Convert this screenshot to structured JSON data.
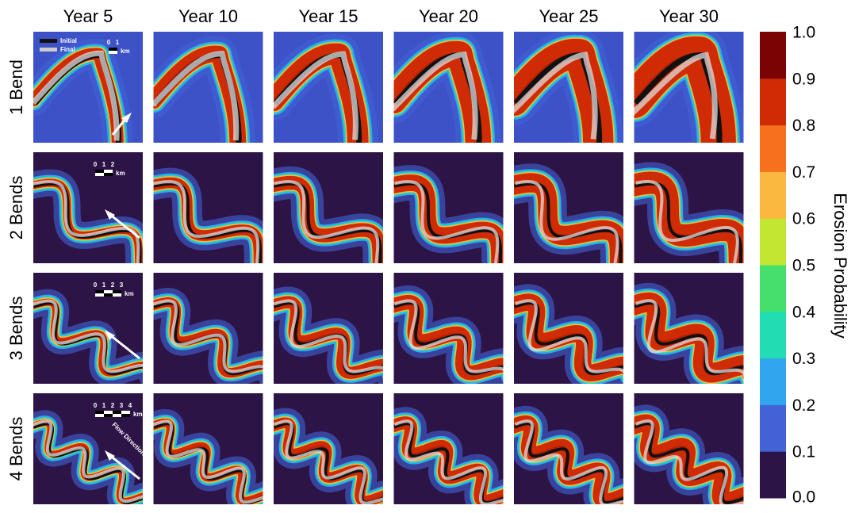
{
  "column_headers": [
    "Year 5",
    "Year 10",
    "Year 15",
    "Year 20",
    "Year 25",
    "Year 30"
  ],
  "row_labels": [
    "1 Bend",
    "2 Bends",
    "3 Bends",
    "4 Bends"
  ],
  "legend": {
    "initial": "Initial",
    "final": "Final"
  },
  "scale_bars": [
    {
      "ticks": [
        "0",
        "1"
      ],
      "unit": "km"
    },
    {
      "ticks": [
        "0",
        "1",
        "2"
      ],
      "unit": "km"
    },
    {
      "ticks": [
        "0",
        "1",
        "2",
        "3"
      ],
      "unit": "km"
    },
    {
      "ticks": [
        "0",
        "1",
        "2",
        "3",
        "4"
      ],
      "unit": "km"
    }
  ],
  "flow_label": "Flow Direction",
  "colorbar": {
    "label": "Erosion Probability",
    "ticks": [
      "0.0",
      "0.1",
      "0.2",
      "0.3",
      "0.4",
      "0.5",
      "0.6",
      "0.7",
      "0.8",
      "0.9",
      "1.0"
    ],
    "colors": [
      "#2d1446",
      "#4262d6",
      "#31a6ef",
      "#22dcb4",
      "#45e06c",
      "#c2e632",
      "#fbb840",
      "#f6701e",
      "#cf2b05",
      "#7a0403"
    ]
  }
}
